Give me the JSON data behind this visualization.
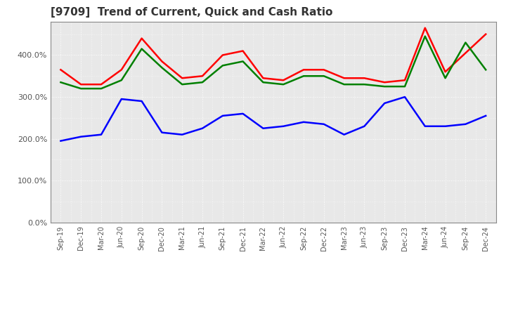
{
  "title": "[9709]  Trend of Current, Quick and Cash Ratio",
  "x_labels": [
    "Sep-19",
    "Dec-19",
    "Mar-20",
    "Jun-20",
    "Sep-20",
    "Dec-20",
    "Mar-21",
    "Jun-21",
    "Sep-21",
    "Dec-21",
    "Mar-22",
    "Jun-22",
    "Sep-22",
    "Dec-22",
    "Mar-23",
    "Jun-23",
    "Sep-23",
    "Dec-23",
    "Mar-24",
    "Jun-24",
    "Sep-24",
    "Dec-24"
  ],
  "current_ratio": [
    3.65,
    3.3,
    3.3,
    3.65,
    4.4,
    3.85,
    3.45,
    3.5,
    4.0,
    4.1,
    3.45,
    3.4,
    3.65,
    3.65,
    3.45,
    3.45,
    3.35,
    3.4,
    4.65,
    3.6,
    4.05,
    4.5
  ],
  "quick_ratio": [
    3.35,
    3.2,
    3.2,
    3.4,
    4.15,
    3.7,
    3.3,
    3.35,
    3.75,
    3.85,
    3.35,
    3.3,
    3.5,
    3.5,
    3.3,
    3.3,
    3.25,
    3.25,
    4.45,
    3.45,
    4.3,
    3.65
  ],
  "cash_ratio": [
    1.95,
    2.05,
    2.1,
    2.95,
    2.9,
    2.15,
    2.1,
    2.25,
    2.55,
    2.6,
    2.25,
    2.3,
    2.4,
    2.35,
    2.1,
    2.3,
    2.85,
    3.0,
    2.3,
    2.3,
    2.35,
    2.55
  ],
  "current_color": "#ff0000",
  "quick_color": "#008000",
  "cash_color": "#0000ff",
  "background_color": "#ffffff",
  "plot_bg_color": "#e8e8e8",
  "grid_color": "#ffffff",
  "ylim": [
    0.0,
    4.8
  ],
  "yticks": [
    0.0,
    1.0,
    2.0,
    3.0,
    4.0
  ],
  "ytick_labels": [
    "0.0%",
    "100.0%",
    "200.0%",
    "300.0%",
    "400.0%"
  ]
}
